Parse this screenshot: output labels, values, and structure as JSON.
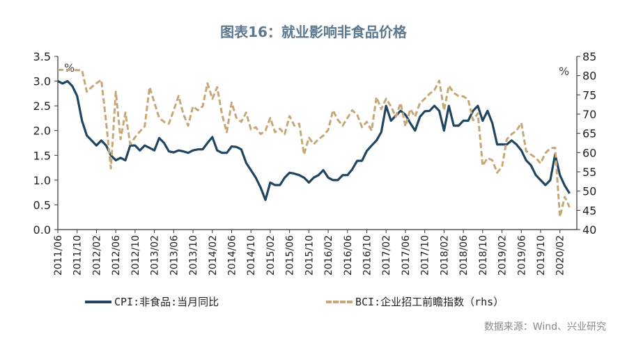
{
  "title": "图表16：就业影响非食品价格",
  "source": "数据来源：Wind、兴业研究",
  "colors": {
    "cpi": "#1f4560",
    "bci": "#c6a877",
    "axis": "#333333",
    "title": "#5b7891"
  },
  "chart_data": {
    "type": "line",
    "title": "图表16：就业影响非食品价格",
    "left_axis": {
      "unit": "%",
      "ylim": [
        0,
        3.5
      ],
      "ticks": [
        "0.0",
        "0.5",
        "1.0",
        "1.5",
        "2.0",
        "2.5",
        "3.0",
        "3.5"
      ]
    },
    "right_axis": {
      "unit": "%",
      "ylim": [
        40,
        85
      ],
      "ticks": [
        "40",
        "45",
        "50",
        "55",
        "60",
        "65",
        "70",
        "75",
        "80",
        "85"
      ]
    },
    "x_tick_labels": [
      "2011/06",
      "2011/10",
      "2012/02",
      "2012/06",
      "2012/10",
      "2013/02",
      "2013/06",
      "2013/10",
      "2014/02",
      "2014/06",
      "2014/10",
      "2015/02",
      "2015/06",
      "2015/10",
      "2016/02",
      "2016/06",
      "2016/10",
      "2017/02",
      "2017/06",
      "2017/10",
      "2018/02",
      "2018/06",
      "2018/10",
      "2019/02",
      "2019/06",
      "2019/10",
      "2020/02"
    ],
    "grid": false,
    "legend_position": "bottom",
    "x": [
      "2011/06",
      "2011/07",
      "2011/08",
      "2011/09",
      "2011/10",
      "2011/11",
      "2011/12",
      "2012/01",
      "2012/02",
      "2012/03",
      "2012/04",
      "2012/05",
      "2012/06",
      "2012/07",
      "2012/08",
      "2012/09",
      "2012/10",
      "2012/11",
      "2012/12",
      "2013/01",
      "2013/02",
      "2013/03",
      "2013/04",
      "2013/05",
      "2013/06",
      "2013/07",
      "2013/08",
      "2013/09",
      "2013/10",
      "2013/11",
      "2013/12",
      "2014/01",
      "2014/02",
      "2014/03",
      "2014/04",
      "2014/05",
      "2014/06",
      "2014/07",
      "2014/08",
      "2014/09",
      "2014/10",
      "2014/11",
      "2014/12",
      "2015/01",
      "2015/02",
      "2015/03",
      "2015/04",
      "2015/05",
      "2015/06",
      "2015/07",
      "2015/08",
      "2015/09",
      "2015/10",
      "2015/11",
      "2015/12",
      "2016/01",
      "2016/02",
      "2016/03",
      "2016/04",
      "2016/05",
      "2016/06",
      "2016/07",
      "2016/08",
      "2016/09",
      "2016/10",
      "2016/11",
      "2016/12",
      "2017/01",
      "2017/02",
      "2017/03",
      "2017/04",
      "2017/05",
      "2017/06",
      "2017/07",
      "2017/08",
      "2017/09",
      "2017/10",
      "2017/11",
      "2017/12",
      "2018/01",
      "2018/02",
      "2018/03",
      "2018/04",
      "2018/05",
      "2018/06",
      "2018/07",
      "2018/08",
      "2018/09",
      "2018/10",
      "2018/11",
      "2018/12",
      "2019/01",
      "2019/02",
      "2019/03",
      "2019/04",
      "2019/05",
      "2019/06",
      "2019/07",
      "2019/08",
      "2019/09",
      "2019/10",
      "2019/11",
      "2019/12",
      "2020/01",
      "2020/02",
      "2020/03",
      "2020/04"
    ],
    "series": [
      {
        "name": "CPI:非食品:当月同比",
        "axis": "left",
        "style": "solid",
        "values": [
          3.0,
          2.95,
          3.0,
          2.9,
          2.7,
          2.2,
          1.9,
          1.8,
          1.7,
          1.8,
          1.7,
          1.5,
          1.4,
          1.45,
          1.4,
          1.7,
          1.7,
          1.6,
          1.7,
          1.65,
          1.6,
          1.85,
          1.75,
          1.58,
          1.56,
          1.6,
          1.58,
          1.55,
          1.6,
          1.62,
          1.62,
          1.75,
          1.87,
          1.6,
          1.55,
          1.55,
          1.68,
          1.67,
          1.62,
          1.35,
          1.2,
          1.05,
          0.85,
          0.6,
          0.95,
          0.9,
          0.9,
          1.05,
          1.15,
          1.13,
          1.1,
          1.05,
          0.95,
          1.05,
          1.1,
          1.2,
          1.05,
          1.0,
          1.0,
          1.1,
          1.1,
          1.22,
          1.39,
          1.39,
          1.59,
          1.7,
          1.8,
          1.97,
          2.5,
          2.2,
          2.3,
          2.4,
          2.32,
          2.15,
          2.0,
          2.28,
          2.39,
          2.4,
          2.5,
          2.4,
          2.0,
          2.5,
          2.1,
          2.1,
          2.2,
          2.2,
          2.4,
          2.5,
          2.2,
          2.4,
          2.15,
          1.72,
          1.72,
          1.72,
          1.8,
          1.72,
          1.6,
          1.4,
          1.3,
          1.1,
          1.0,
          0.9,
          1.0,
          1.52,
          1.1,
          0.89,
          0.73
        ]
      },
      {
        "name": "BCI:企业招工前瞻指数（rhs）",
        "axis": "right",
        "style": "dashed",
        "values": [
          81.5,
          81.5,
          81.5,
          81.5,
          81.4,
          81.4,
          75.8,
          77,
          78,
          78.9,
          68,
          55.9,
          75.8,
          63.5,
          70.4,
          62.2,
          64,
          65.5,
          66.8,
          77,
          73,
          69,
          68,
          67.5,
          71,
          74.7,
          70,
          67,
          72,
          71,
          72,
          78,
          74,
          77,
          70,
          65.3,
          73,
          69,
          68,
          70.4,
          66,
          66.6,
          64.8,
          65.7,
          69,
          65.3,
          66.2,
          64.8,
          69.5,
          67,
          67.5,
          59.5,
          63.9,
          62.2,
          63.5,
          64.4,
          65.9,
          71,
          68.5,
          67,
          69,
          71,
          69.8,
          66.6,
          68,
          65.7,
          74.4,
          71.3,
          74,
          72,
          69.3,
          72.9,
          66.8,
          71.3,
          69.3,
          72.9,
          74,
          75.3,
          76.2,
          78.7,
          71,
          77.4,
          75.5,
          74.7,
          74.6,
          73.8,
          68.4,
          70.2,
          56.6,
          58.6,
          58,
          54.8,
          56.3,
          63.5,
          64.8,
          65.7,
          67.7,
          60.4,
          59.5,
          58.6,
          57.2,
          59.9,
          61.1,
          61.3,
          43.3,
          48.5,
          45.8
        ]
      }
    ]
  }
}
